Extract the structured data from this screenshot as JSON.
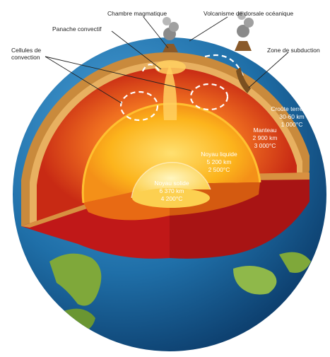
{
  "labels": {
    "chambre_magmatique": "Chambre magmatique",
    "volcanisme_dorsale": "Volcanisme de dorsale océanique",
    "panache_convectif": "Panache convectif",
    "cellules_convection_1": "Cellules de",
    "cellules_convection_2": "convection",
    "zone_subduction": "Zone de subduction",
    "croute": {
      "name": "Croûte terrestre",
      "thickness": "30-60 km",
      "temp": "1 000°C"
    },
    "manteau": {
      "name": "Manteau",
      "thickness": "2 900 km",
      "temp": "3 000°C"
    },
    "noyau_liquide": {
      "name": "Noyau liquide",
      "thickness": "5 200 km",
      "temp": "2 500°C"
    },
    "noyau_solide": {
      "name": "Noyau solide",
      "thickness": "6 370 km",
      "temp": "4 200°C"
    }
  },
  "colors": {
    "ocean": "#1f6fa8",
    "land": "#7fa83a",
    "crust": "#c98a3c",
    "mantle_outer": "#e04818",
    "mantle_inner": "#f28020",
    "outer_core": "#f8a818",
    "inner_core": "#fce070",
    "cut_face": "#c01818",
    "convection_arrows": "#ffffff"
  }
}
